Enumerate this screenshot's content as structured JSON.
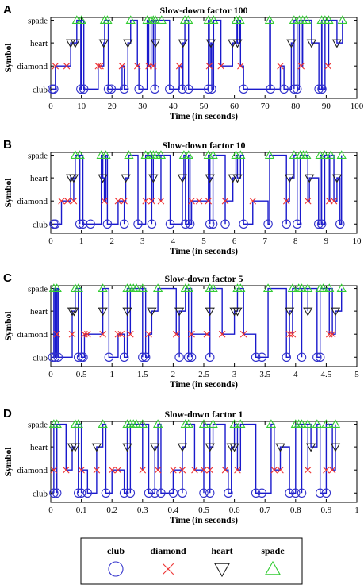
{
  "figure": {
    "symbols": [
      "club",
      "diamond",
      "heart",
      "spade"
    ],
    "colors": {
      "club": "#3333cc",
      "diamond": "#ee3333",
      "heart": "#222222",
      "spade": "#33cc33",
      "trace": "#1a1acc"
    },
    "icons": {
      "club": "circle-icon",
      "diamond": "cross-icon",
      "heart": "down-triangle-icon",
      "spade": "up-triangle-icon"
    }
  },
  "legend": {
    "entries": [
      {
        "label": "club",
        "icon": "circle-icon"
      },
      {
        "label": "diamond",
        "icon": "cross-icon"
      },
      {
        "label": "heart",
        "icon": "down-triangle-icon"
      },
      {
        "label": "spade",
        "icon": "up-triangle-icon"
      }
    ]
  },
  "chart_data": [
    {
      "type": "scatter",
      "panel": "A",
      "title": "Slow-down factor 100",
      "xlabel": "Time (in seconds)",
      "ylabel": "Symbol",
      "xlim": [
        0,
        100
      ],
      "xticks": [
        0,
        10,
        20,
        30,
        40,
        50,
        60,
        70,
        80,
        90,
        100
      ],
      "yticks": [
        "club",
        "diamond",
        "heart",
        "spade"
      ],
      "series": {
        "club": [
          0.5,
          1,
          9.8,
          10.8,
          18.8,
          19.8,
          24,
          28.8,
          34,
          38.8,
          43,
          45,
          51.5,
          52.6,
          63,
          71.8,
          76.2,
          79.5,
          80.5,
          87.6,
          88.6
        ],
        "diamond": [
          1.5,
          5.2,
          15.5,
          16.2,
          23.3,
          28.3,
          32,
          33.5,
          42,
          51.8,
          55.6,
          62,
          75,
          81.8,
          90.6
        ],
        "heart": [
          6.5,
          8,
          17.3,
          25.2,
          34.2,
          43.2,
          52.3,
          59.4,
          61,
          78.6,
          85.2,
          93.5
        ],
        "spade": [
          8.5,
          10,
          17.6,
          18.5,
          26.1,
          31.5,
          32.8,
          33.5,
          34.2,
          36.2,
          43.8,
          44.9,
          51.5,
          53.2,
          60.6,
          61.8,
          71.5,
          79.5,
          81.2,
          82.3,
          83.5,
          88.5,
          89.6,
          90.8,
          95.3
        ]
      }
    },
    {
      "type": "scatter",
      "panel": "B",
      "title": "Slow-down factor 10",
      "xlabel": "Time (in seconds)",
      "ylabel": "Symbol",
      "xlim": [
        0,
        10
      ],
      "xticks": [
        0,
        1,
        2,
        3,
        4,
        5,
        6,
        7,
        8,
        9,
        10
      ],
      "yticks": [
        "club",
        "diamond",
        "heart",
        "spade"
      ],
      "series": {
        "club": [
          0.1,
          0.15,
          0.95,
          1.05,
          1.3,
          1.85,
          2.4,
          2.85,
          3.3,
          3.9,
          4.4,
          4.55,
          5.2,
          5.3,
          5.7,
          6.3,
          7.1,
          7.7,
          8.05,
          8.75,
          8.85,
          9.45
        ],
        "diamond": [
          0.35,
          0.55,
          0.75,
          1.75,
          2.2,
          2.4,
          3.1,
          3.3,
          3.6,
          4.6,
          4.85,
          5.15,
          5.7,
          6.6,
          7.7,
          8.4,
          9.1,
          9.25
        ],
        "heart": [
          0.65,
          0.75,
          1.7,
          2.45,
          3.35,
          4.3,
          5.2,
          5.95,
          6.1,
          7.8,
          8.45,
          9.35
        ],
        "spade": [
          0.8,
          0.95,
          1.65,
          1.8,
          2.55,
          3.1,
          3.25,
          3.35,
          3.45,
          3.6,
          4.35,
          4.5,
          5.15,
          5.3,
          6.05,
          6.2,
          7.15,
          7.95,
          8.15,
          8.25,
          8.35,
          8.8,
          8.95,
          9.15,
          9.5
        ]
      }
    },
    {
      "type": "scatter",
      "panel": "C",
      "title": "Slow-down factor 5",
      "xlabel": "Time (in seconds)",
      "ylabel": "Symbol",
      "xlim": [
        0,
        5
      ],
      "xticks": [
        0,
        0.5,
        1,
        1.5,
        2,
        2.5,
        3,
        3.5,
        4,
        4.5,
        5
      ],
      "yticks": [
        "club",
        "diamond",
        "heart",
        "spade"
      ],
      "series": {
        "club": [
          0.03,
          0.07,
          0.12,
          0.45,
          0.5,
          0.53,
          0.95,
          1.2,
          1.5,
          1.55,
          2.1,
          2.25,
          2.3,
          2.6,
          3.35,
          3.45,
          3.85,
          4.1,
          4.35,
          4.4
        ],
        "diamond": [
          0.1,
          0.35,
          0.55,
          0.6,
          0.85,
          1.1,
          1.15,
          1.3,
          1.6,
          2.05,
          2.3,
          2.55,
          2.8,
          3.15,
          3.9,
          3.95,
          4.55,
          4.6
        ],
        "heart": [
          0.35,
          0.38,
          0.85,
          1.25,
          1.65,
          2.1,
          2.6,
          3.0,
          3.05,
          3.9,
          4.2,
          4.65
        ],
        "spade": [
          0.05,
          0.1,
          0.4,
          0.45,
          0.85,
          1.25,
          1.3,
          1.35,
          1.4,
          1.5,
          1.75,
          2.2,
          2.25,
          2.6,
          2.65,
          3.05,
          3.1,
          3.55,
          3.95,
          4.05,
          4.1,
          4.2,
          4.4,
          4.45,
          4.55,
          4.75
        ]
      }
    },
    {
      "type": "scatter",
      "panel": "D",
      "title": "Slow-down factor 1",
      "xlabel": "Time (in seconds)",
      "ylabel": "Symbol",
      "xlim": [
        0,
        1
      ],
      "xticks": [
        0,
        0.1,
        0.2,
        0.3,
        0.4,
        0.5,
        0.6,
        0.7,
        0.8,
        0.9,
        1
      ],
      "yticks": [
        "club",
        "diamond",
        "heart",
        "spade"
      ],
      "series": {
        "club": [
          0.01,
          0.02,
          0.09,
          0.1,
          0.12,
          0.18,
          0.24,
          0.26,
          0.32,
          0.34,
          0.36,
          0.4,
          0.43,
          0.5,
          0.52,
          0.58,
          0.67,
          0.69,
          0.78,
          0.8,
          0.82,
          0.88,
          0.9
        ],
        "diamond": [
          0.01,
          0.05,
          0.1,
          0.15,
          0.2,
          0.22,
          0.3,
          0.35,
          0.4,
          0.43,
          0.47,
          0.5,
          0.52,
          0.57,
          0.61,
          0.73,
          0.75,
          0.84,
          0.9,
          0.92
        ],
        "heart": [
          0.07,
          0.08,
          0.15,
          0.25,
          0.34,
          0.43,
          0.52,
          0.59,
          0.6,
          0.75,
          0.85,
          0.93
        ],
        "spade": [
          0.01,
          0.02,
          0.08,
          0.09,
          0.17,
          0.25,
          0.26,
          0.27,
          0.28,
          0.3,
          0.35,
          0.44,
          0.45,
          0.5,
          0.53,
          0.6,
          0.62,
          0.72,
          0.8,
          0.81,
          0.82,
          0.84,
          0.87,
          0.9,
          0.93
        ]
      }
    }
  ]
}
